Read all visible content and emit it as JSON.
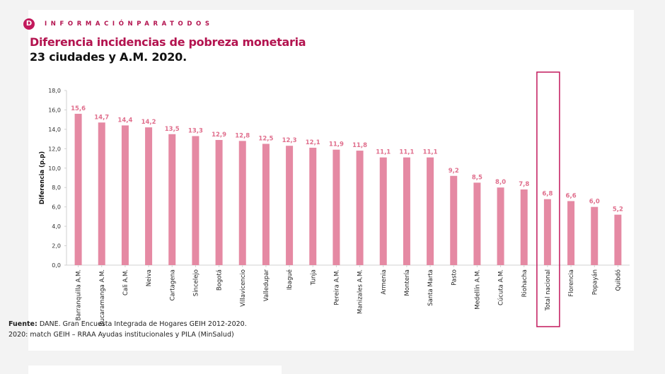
{
  "header": {
    "brand_icon": "D",
    "brand_text": "INFORMACIÓNPARATODOS",
    "title": "Diferencia incidencias de pobreza monetaria",
    "subtitle": "23 ciudades y A.M. 2020."
  },
  "source": {
    "label": "Fuente:",
    "text": "DANE. Gran Encuesta Integrada de Hogares GEIH 2012-2020.",
    "line2": "2020: match GEIH – RRAA Ayudas institucionales y PILA (MinSalud)"
  },
  "colors": {
    "bar": "#e589a3",
    "value_label": "#e06f8d",
    "highlight_box": "#c2185b",
    "accent": "#b3134f"
  },
  "chart_data": {
    "type": "bar",
    "ylabel": "Diferencia (p.p)",
    "ylim": [
      0,
      18
    ],
    "yticks": [
      "0,0",
      "2,0",
      "4,0",
      "6,0",
      "8,0",
      "10,0",
      "12,0",
      "14,0",
      "16,0",
      "18,0"
    ],
    "grid": false,
    "highlighted_category": "Total nacional",
    "categories": [
      "Barranquilla A.M.",
      "Bucaramanga A.M.",
      "Cali A.M.",
      "Neiva",
      "Cartagena",
      "Sincelejo",
      "Bogotá",
      "Villavicencio",
      "Valledupar",
      "Ibagué",
      "Tunja",
      "Pereira A.M.",
      "Manizales A.M.",
      "Armenia",
      "Montería",
      "Santa Marta",
      "Pasto",
      "Medellín A.M.",
      "Cúcuta A.M.",
      "Riohacha",
      "Total nacional",
      "Florencia",
      "Popayán",
      "Quibdó"
    ],
    "values": [
      15.6,
      14.7,
      14.4,
      14.2,
      13.5,
      13.3,
      12.9,
      12.8,
      12.5,
      12.3,
      12.1,
      11.9,
      11.8,
      11.1,
      11.1,
      11.1,
      9.2,
      8.5,
      8.0,
      7.8,
      6.8,
      6.6,
      6.0,
      5.2
    ],
    "value_labels": [
      "15,6",
      "14,7",
      "14,4",
      "14,2",
      "13,5",
      "13,3",
      "12,9",
      "12,8",
      "12,5",
      "12,3",
      "12,1",
      "11,9",
      "11,8",
      "11,1",
      "11,1",
      "11,1",
      "9,2",
      "8,5",
      "8,0",
      "7,8",
      "6,8",
      "6,6",
      "6,0",
      "5,2"
    ]
  }
}
